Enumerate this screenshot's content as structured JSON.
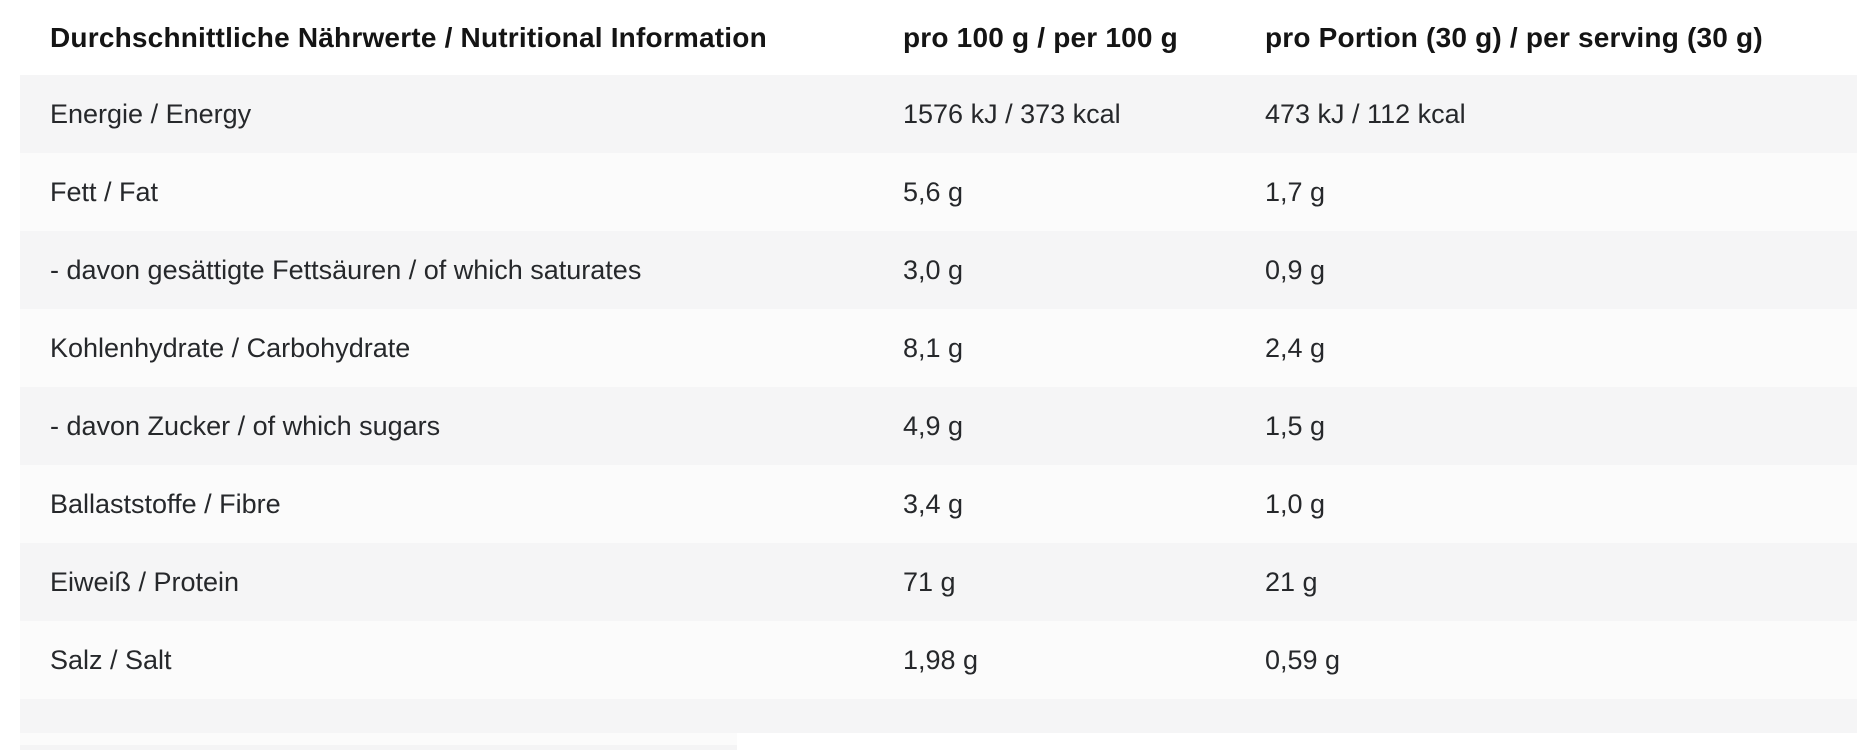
{
  "table": {
    "title": "Durchschnittliche Nährwerte / Nutritional Information",
    "columns": {
      "label": "Durchschnittliche Nährwerte / Nutritional Information",
      "per_100g": "pro 100 g / per 100 g",
      "per_serving": "pro Portion (30 g) / per serving (30 g)"
    },
    "rows": [
      {
        "label": "Energie / Energy",
        "per_100g": "1576 kJ / 373 kcal",
        "per_serving": "473 kJ / 112 kcal"
      },
      {
        "label": "Fett / Fat",
        "per_100g": "5,6 g",
        "per_serving": "1,7 g"
      },
      {
        "label": "- davon gesättigte Fettsäuren / of which saturates",
        "per_100g": "3,0 g",
        "per_serving": "0,9 g"
      },
      {
        "label": "Kohlenhydrate / Carbohydrate",
        "per_100g": "8,1 g",
        "per_serving": "2,4 g"
      },
      {
        "label": "- davon Zucker / of which sugars",
        "per_100g": "4,9 g",
        "per_serving": "1,5 g"
      },
      {
        "label": "Ballaststoffe / Fibre",
        "per_100g": "3,4 g",
        "per_serving": "1,0 g"
      },
      {
        "label": "Eiweiß / Protein",
        "per_100g": "71 g",
        "per_serving": "21 g"
      },
      {
        "label": "Salz / Salt",
        "per_100g": "1,98 g",
        "per_serving": "0,59 g"
      }
    ],
    "colors": {
      "row_stripe_grey": "#f5f5f6",
      "row_stripe_light": "#fbfbfb",
      "header_text": "#141414",
      "body_text": "#26282b",
      "page_background": "#ffffff"
    }
  }
}
